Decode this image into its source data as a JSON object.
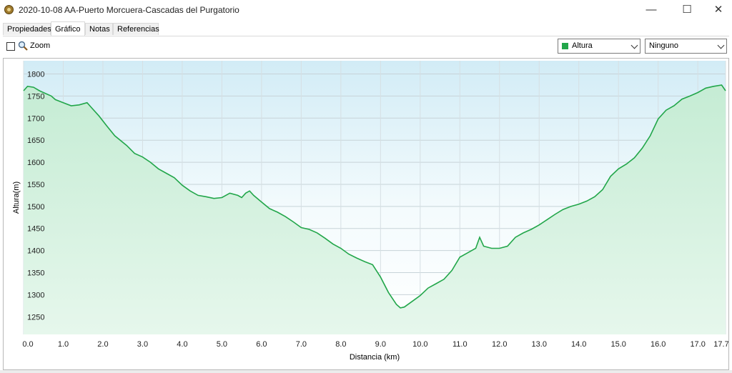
{
  "window": {
    "title": "2020-10-08 AA-Puerto Morcuera-Cascadas del Purgatorio",
    "minimize": "—",
    "maximize": "☐",
    "close": "✕"
  },
  "tabs": [
    {
      "label": "Propiedades"
    },
    {
      "label": "Gráfico"
    },
    {
      "label": "Notas"
    },
    {
      "label": "Referencias"
    }
  ],
  "toolbar": {
    "zoom_label": "Zoom",
    "zoom_checked": false,
    "series_select": "Altura",
    "series_color": "#22a64a",
    "secondary_select": "Ninguno"
  },
  "chart_data": {
    "type": "area",
    "title": "",
    "xlabel": "Distancia  (km)",
    "ylabel": "Altura(m)",
    "xlim": [
      0,
      17.7
    ],
    "ylim": [
      1210,
      1830
    ],
    "x_ticks": [
      0.0,
      1.0,
      2.0,
      3.0,
      4.0,
      5.0,
      6.0,
      7.0,
      8.0,
      9.0,
      10.0,
      11.0,
      12.0,
      13.0,
      14.0,
      15.0,
      16.0,
      17.0,
      17.7
    ],
    "x_tick_labels": [
      "0.0",
      "1.0",
      "2.0",
      "3.0",
      "4.0",
      "5.0",
      "6.0",
      "7.0",
      "8.0",
      "9.0",
      "10.0",
      "11.0",
      "12.0",
      "13.0",
      "14.0",
      "15.0",
      "16.0",
      "17.0",
      "17.7"
    ],
    "y_ticks": [
      1250,
      1300,
      1350,
      1400,
      1450,
      1500,
      1550,
      1600,
      1650,
      1700,
      1750,
      1800
    ],
    "grid": true,
    "line_color": "#22a64a",
    "series": [
      {
        "name": "Altura",
        "x": [
          0.0,
          0.1,
          0.25,
          0.4,
          0.5,
          0.7,
          0.8,
          1.0,
          1.2,
          1.4,
          1.6,
          1.7,
          1.9,
          2.1,
          2.3,
          2.6,
          2.8,
          3.0,
          3.2,
          3.4,
          3.6,
          3.8,
          4.0,
          4.2,
          4.4,
          4.6,
          4.8,
          5.0,
          5.2,
          5.4,
          5.5,
          5.6,
          5.7,
          5.8,
          6.0,
          6.2,
          6.4,
          6.6,
          6.8,
          7.0,
          7.2,
          7.4,
          7.6,
          7.8,
          8.0,
          8.2,
          8.4,
          8.6,
          8.8,
          9.0,
          9.2,
          9.4,
          9.5,
          9.6,
          9.8,
          10.0,
          10.2,
          10.4,
          10.6,
          10.8,
          11.0,
          11.2,
          11.4,
          11.5,
          11.6,
          11.8,
          12.0,
          12.2,
          12.4,
          12.6,
          12.8,
          13.0,
          13.2,
          13.4,
          13.6,
          13.8,
          14.0,
          14.2,
          14.4,
          14.6,
          14.8,
          15.0,
          15.2,
          15.4,
          15.6,
          15.8,
          16.0,
          16.2,
          16.4,
          16.6,
          16.8,
          17.0,
          17.2,
          17.4,
          17.6,
          17.7
        ],
        "y": [
          1762,
          1772,
          1770,
          1762,
          1758,
          1750,
          1742,
          1735,
          1728,
          1730,
          1735,
          1725,
          1705,
          1682,
          1660,
          1638,
          1620,
          1612,
          1600,
          1585,
          1575,
          1565,
          1548,
          1535,
          1525,
          1522,
          1518,
          1520,
          1530,
          1525,
          1520,
          1530,
          1535,
          1525,
          1510,
          1495,
          1487,
          1477,
          1465,
          1452,
          1448,
          1440,
          1428,
          1415,
          1405,
          1392,
          1383,
          1375,
          1368,
          1340,
          1305,
          1278,
          1270,
          1272,
          1285,
          1298,
          1315,
          1325,
          1335,
          1355,
          1385,
          1395,
          1405,
          1430,
          1410,
          1405,
          1405,
          1410,
          1430,
          1440,
          1448,
          1458,
          1470,
          1482,
          1493,
          1500,
          1505,
          1512,
          1522,
          1538,
          1568,
          1585,
          1596,
          1610,
          1632,
          1660,
          1698,
          1718,
          1728,
          1743,
          1750,
          1758,
          1768,
          1772,
          1775,
          1762
        ]
      }
    ]
  }
}
